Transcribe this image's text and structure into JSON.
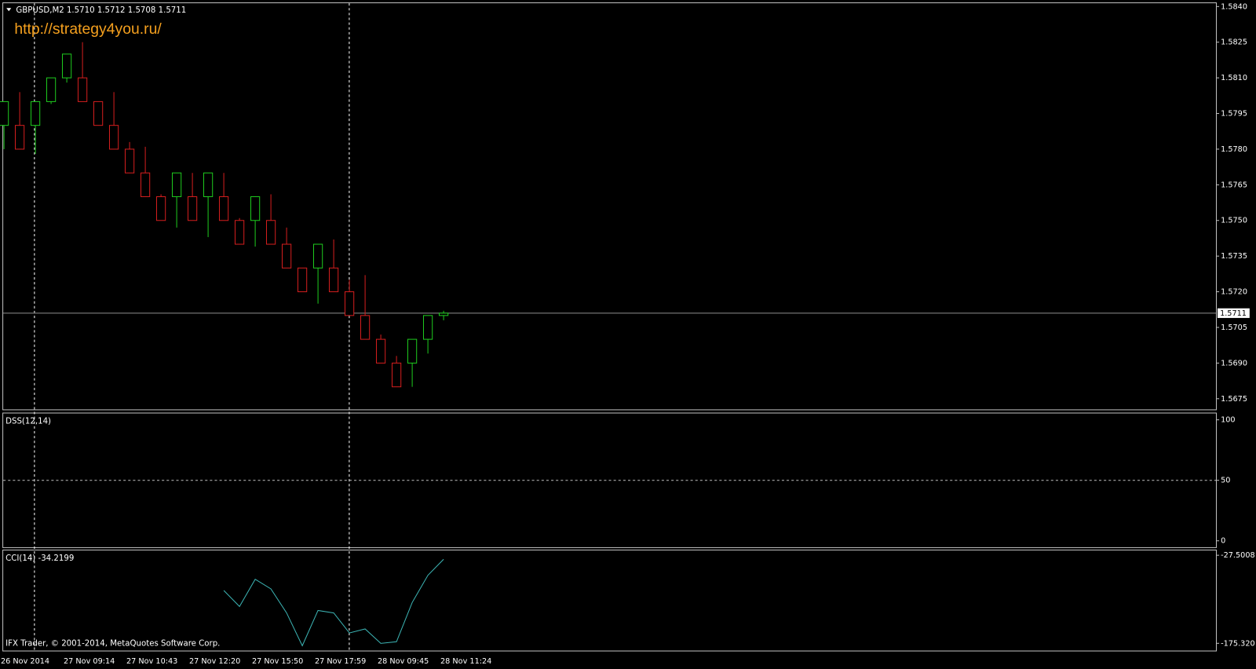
{
  "chart_data": [
    {
      "type": "candlestick",
      "title": "GBPUSD,M2  1.5710 1.5712 1.5708 1.5711",
      "watermark": "http://strategy4you.ru/",
      "categories": [
        "26 Nov 2014",
        null,
        null,
        null,
        "27 Nov 09:14",
        null,
        null,
        null,
        "27 Nov 10:43",
        null,
        null,
        null,
        "27 Nov 12:20",
        null,
        null,
        null,
        "27 Nov 15:50",
        null,
        null,
        null,
        "27 Nov 17:59",
        null,
        null,
        null,
        "28 Nov 09:45",
        null,
        null,
        null,
        "28 Nov 11:24"
      ],
      "open": [
        1.579,
        1.579,
        1.579,
        1.58,
        1.581,
        1.581,
        1.58,
        1.579,
        1.578,
        1.577,
        1.576,
        1.576,
        1.576,
        1.576,
        1.576,
        1.575,
        1.575,
        1.575,
        1.574,
        1.573,
        1.573,
        1.573,
        1.572,
        1.571,
        1.57,
        1.569,
        1.569,
        1.57,
        1.571
      ],
      "high": [
        1.58,
        1.5804,
        1.58,
        1.581,
        1.582,
        1.5825,
        1.58,
        1.5804,
        1.5783,
        1.5781,
        1.5761,
        1.577,
        1.577,
        1.577,
        1.577,
        1.5751,
        1.576,
        1.5761,
        1.5747,
        1.573,
        1.574,
        1.5742,
        1.5725,
        1.5727,
        1.5702,
        1.5693,
        1.57,
        1.571,
        1.5712
      ],
      "low": [
        1.578,
        1.578,
        1.5778,
        1.5799,
        1.5808,
        1.58,
        1.579,
        1.578,
        1.577,
        1.576,
        1.575,
        1.5747,
        1.575,
        1.5743,
        1.575,
        1.574,
        1.5739,
        1.574,
        1.573,
        1.572,
        1.5715,
        1.572,
        1.571,
        1.57,
        1.569,
        1.568,
        1.568,
        1.5694,
        1.5708
      ],
      "close": [
        1.58,
        1.578,
        1.58,
        1.581,
        1.582,
        1.58,
        1.579,
        1.578,
        1.577,
        1.576,
        1.575,
        1.577,
        1.575,
        1.577,
        1.575,
        1.574,
        1.576,
        1.574,
        1.573,
        1.572,
        1.574,
        1.572,
        1.571,
        1.57,
        1.569,
        1.568,
        1.57,
        1.571,
        1.5711
      ],
      "up_color": "#1ec81e",
      "down_color": "#d21e1e",
      "ylim": [
        1.56705,
        1.58414
      ],
      "yticks": [
        {
          "value": 1.584,
          "label": "1.5840"
        },
        {
          "value": 1.5825,
          "label": "1.5825"
        },
        {
          "value": 1.581,
          "label": "1.5810"
        },
        {
          "value": 1.5795,
          "label": "1.5795"
        },
        {
          "value": 1.578,
          "label": "1.5780"
        },
        {
          "value": 1.5765,
          "label": "1.5765"
        },
        {
          "value": 1.575,
          "label": "1.5750"
        },
        {
          "value": 1.5735,
          "label": "1.5735"
        },
        {
          "value": 1.572,
          "label": "1.5720"
        },
        {
          "value": 1.5705,
          "label": "1.5705"
        },
        {
          "value": 1.569,
          "label": "1.5690"
        },
        {
          "value": 1.5675,
          "label": "1.5675"
        }
      ],
      "last_price": 1.5711
    },
    {
      "type": "line",
      "title": "DSS(12,14)",
      "ylim": [
        -5.3,
        105.3
      ],
      "yticks": [
        100,
        50,
        0
      ],
      "level_lines": [
        50
      ],
      "series": []
    },
    {
      "type": "line",
      "title": "CCI(14) -34.2199",
      "footer": "IFX Trader, © 2001-2014, MetaQuotes Software Corp.",
      "ylim": [
        -187.5,
        -19.4
      ],
      "yticks": [
        -27.5008,
        {
          "value": -175.32,
          "label": "-175.320"
        }
      ],
      "series": [
        {
          "color": "#3cb4b4",
          "values": [
            null,
            null,
            null,
            null,
            null,
            null,
            null,
            null,
            null,
            null,
            null,
            null,
            null,
            null,
            -86.6,
            -113.5,
            -67.8,
            -84.0,
            -124.3,
            -179.4,
            -120.2,
            -124.3,
            -157.9,
            -151.2,
            -175.4,
            -172.7,
            -106.8,
            -61.1,
            -34.2199
          ]
        }
      ]
    }
  ]
}
